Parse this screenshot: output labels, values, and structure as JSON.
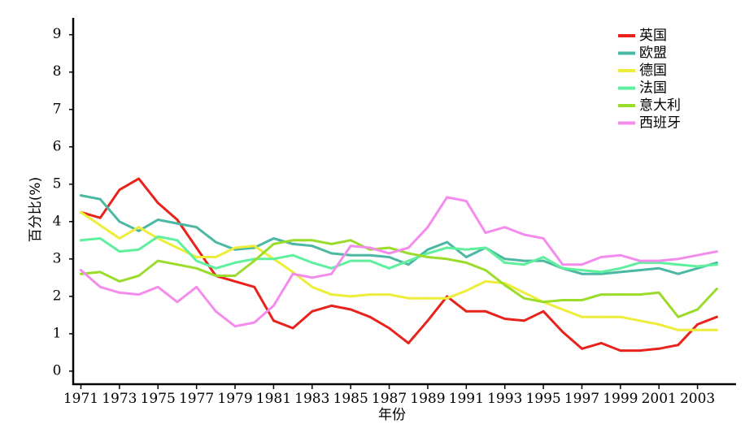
{
  "chart_data": {
    "type": "line",
    "xlabel": "年份",
    "ylabel": "百分比(%)",
    "x": [
      1971,
      1972,
      1973,
      1974,
      1975,
      1976,
      1977,
      1978,
      1979,
      1980,
      1981,
      1982,
      1983,
      1984,
      1985,
      1986,
      1987,
      1988,
      1989,
      1990,
      1991,
      1992,
      1993,
      1994,
      1995,
      1996,
      1997,
      1998,
      1999,
      2000,
      2001,
      2002,
      2003,
      2004
    ],
    "x_tick_labels": [
      "1971",
      "1973",
      "1975",
      "1977",
      "1979",
      "1981",
      "1983",
      "1985",
      "1987",
      "1989",
      "1991",
      "1993",
      "1995",
      "1997",
      "1999",
      "2001",
      "2003"
    ],
    "x_tick_values": [
      1971,
      1973,
      1975,
      1977,
      1979,
      1981,
      1983,
      1985,
      1987,
      1989,
      1991,
      1993,
      1995,
      1997,
      1999,
      2001,
      2003
    ],
    "y_tick_labels": [
      "0",
      "1",
      "2",
      "3",
      "4",
      "5",
      "6",
      "7",
      "8",
      "9"
    ],
    "y_tick_values": [
      0,
      1,
      2,
      3,
      4,
      5,
      6,
      7,
      8,
      9
    ],
    "xlim": [
      1970.6,
      2005.0
    ],
    "ylim": [
      -0.35,
      9.45
    ],
    "grid": false,
    "legend_position": "top-right",
    "series": [
      {
        "name": "英国",
        "color": "#e8231c",
        "values": [
          4.25,
          4.1,
          4.85,
          5.15,
          4.5,
          4.05,
          3.3,
          2.55,
          2.4,
          2.25,
          1.35,
          1.15,
          1.6,
          1.75,
          1.65,
          1.45,
          1.15,
          0.75,
          1.35,
          2.0,
          1.6,
          1.6,
          1.4,
          1.35,
          1.6,
          1.05,
          0.6,
          0.75,
          0.55,
          0.55,
          0.6,
          0.7,
          1.25,
          1.45
        ]
      },
      {
        "name": "欧盟",
        "color": "#4bb8a4",
        "values": [
          4.7,
          4.6,
          4.0,
          3.75,
          4.05,
          3.95,
          3.85,
          3.45,
          3.25,
          3.3,
          3.55,
          3.4,
          3.35,
          3.15,
          3.1,
          3.1,
          3.05,
          2.85,
          3.25,
          3.45,
          3.05,
          3.3,
          3.0,
          2.95,
          2.95,
          2.75,
          2.6,
          2.6,
          2.65,
          2.7,
          2.75,
          2.6,
          2.75,
          2.9
        ]
      },
      {
        "name": "德国",
        "color": "#eded3a",
        "values": [
          4.25,
          3.9,
          3.55,
          3.85,
          3.55,
          3.3,
          3.05,
          3.05,
          3.3,
          3.35,
          3.0,
          2.65,
          2.25,
          2.05,
          2.0,
          2.05,
          2.05,
          1.95,
          1.95,
          1.95,
          2.15,
          2.4,
          2.35,
          2.1,
          1.85,
          1.65,
          1.45,
          1.45,
          1.45,
          1.35,
          1.25,
          1.1,
          1.1,
          1.1
        ]
      },
      {
        "name": "法国",
        "color": "#5ff09e",
        "values": [
          3.5,
          3.55,
          3.2,
          3.25,
          3.6,
          3.5,
          2.95,
          2.75,
          2.9,
          3.0,
          3.0,
          3.1,
          2.9,
          2.75,
          2.95,
          2.95,
          2.75,
          2.95,
          3.15,
          3.3,
          3.25,
          3.3,
          2.9,
          2.85,
          3.05,
          2.75,
          2.7,
          2.65,
          2.75,
          2.9,
          2.9,
          2.85,
          2.8,
          2.85
        ]
      },
      {
        "name": "意大利",
        "color": "#9bdc2a",
        "values": [
          2.6,
          2.65,
          2.4,
          2.55,
          2.95,
          2.85,
          2.75,
          2.55,
          2.55,
          2.95,
          3.4,
          3.5,
          3.5,
          3.4,
          3.5,
          3.25,
          3.3,
          3.15,
          3.05,
          3.0,
          2.9,
          2.7,
          2.3,
          1.95,
          1.85,
          1.9,
          1.9,
          2.05,
          2.05,
          2.05,
          2.1,
          1.45,
          1.65,
          2.2
        ]
      },
      {
        "name": "西班牙",
        "color": "#f48cec",
        "values": [
          2.7,
          2.25,
          2.1,
          2.05,
          2.25,
          1.85,
          2.25,
          1.6,
          1.2,
          1.3,
          1.75,
          2.6,
          2.5,
          2.6,
          3.35,
          3.3,
          3.15,
          3.3,
          3.85,
          4.65,
          4.55,
          3.7,
          3.85,
          3.65,
          3.55,
          2.85,
          2.85,
          3.05,
          3.1,
          2.95,
          2.95,
          3.0,
          3.1,
          3.2
        ]
      }
    ]
  }
}
